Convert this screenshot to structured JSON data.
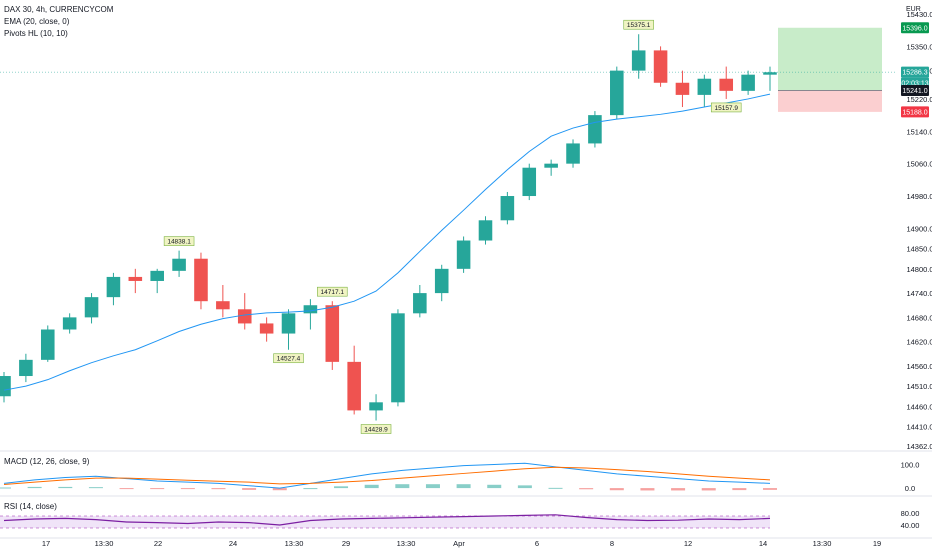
{
  "legend": {
    "symbol": "DAX 30, 4h, CURRENCYCOM",
    "ema": "EMA (20, close, 0)",
    "pivots": "Pivots HL (10, 10)",
    "macd": "MACD (12, 26, close, 9)",
    "rsi": "RSI (14, close)"
  },
  "currency": "EUR",
  "colors": {
    "up": "#26a69a",
    "down": "#ef5350",
    "ema": "#2196f3",
    "macd_line": "#2196f3",
    "signal_line": "#ff6d00",
    "rsi_line": "#7b1fa2",
    "target_zone": "#c8ecc9",
    "stop_zone": "#fbcfd0",
    "target_tag": "#089950",
    "stop_tag": "#f23645",
    "price_tag": "#26a69a",
    "entry_tag": "#131722"
  },
  "chart_data": [
    {
      "type": "candlestick",
      "title": "DAX 30, 4h, CURRENCYCOM",
      "y_axis": {
        "ticks": [
          "15430.0",
          "15350.0",
          "15290.0",
          "15220.0",
          "15140.0",
          "15060.0",
          "14980.0",
          "14900.0",
          "14850.0",
          "14800.0",
          "14740.0",
          "14680.0",
          "14620.0",
          "14560.0",
          "14510.0",
          "14460.0",
          "14410.0",
          "14362.0"
        ],
        "unit": "EUR"
      },
      "x_axis": {
        "ticks": [
          "17",
          "13:30",
          "22",
          "24",
          "13:30",
          "29",
          "13:30",
          "Apr",
          "6",
          "8",
          "12",
          "14",
          "13:30",
          "19"
        ]
      },
      "pivot_labels": [
        "14838.1",
        "14717.1",
        "15375.1",
        "14527.4",
        "14428.9",
        "15157.9"
      ],
      "price_tags": {
        "target": "15396.0",
        "last": "15286.3",
        "countdown": "02:03:13",
        "entry": "15241.0",
        "stop": "15188.0"
      },
      "series": [
        {
          "name": "EMA (20, close, 0)",
          "values": [
            14500,
            14510,
            14526,
            14548,
            14568,
            14585,
            14600,
            14622,
            14645,
            14663,
            14677,
            14686,
            14691,
            14693,
            14696,
            14705,
            14720,
            14745,
            14790,
            14843,
            14895,
            14945,
            14996,
            15045,
            15090,
            15128,
            15148,
            15162,
            15170,
            15176,
            15182,
            15190,
            15200,
            15210,
            15220,
            15232
          ]
        }
      ],
      "candles": [
        [
          14485,
          14545,
          14470,
          14535
        ],
        [
          14535,
          14590,
          14520,
          14575
        ],
        [
          14575,
          14660,
          14570,
          14650
        ],
        [
          14650,
          14690,
          14640,
          14680
        ],
        [
          14680,
          14740,
          14665,
          14730
        ],
        [
          14730,
          14790,
          14710,
          14780
        ],
        [
          14780,
          14800,
          14740,
          14770
        ],
        [
          14770,
          14800,
          14740,
          14795
        ],
        [
          14795,
          14845,
          14780,
          14825
        ],
        [
          14825,
          14840,
          14700,
          14720
        ],
        [
          14720,
          14760,
          14680,
          14700
        ],
        [
          14700,
          14740,
          14650,
          14665
        ],
        [
          14665,
          14680,
          14620,
          14640
        ],
        [
          14640,
          14700,
          14600,
          14690
        ],
        [
          14690,
          14725,
          14650,
          14710
        ],
        [
          14710,
          14720,
          14550,
          14570
        ],
        [
          14570,
          14610,
          14440,
          14450
        ],
        [
          14450,
          14490,
          14425,
          14470
        ],
        [
          14470,
          14700,
          14460,
          14690
        ],
        [
          14690,
          14760,
          14680,
          14740
        ],
        [
          14740,
          14810,
          14720,
          14800
        ],
        [
          14800,
          14880,
          14790,
          14870
        ],
        [
          14870,
          14930,
          14860,
          14920
        ],
        [
          14920,
          14990,
          14910,
          14980
        ],
        [
          14980,
          15060,
          14970,
          15050
        ],
        [
          15050,
          15070,
          15030,
          15060
        ],
        [
          15060,
          15120,
          15050,
          15110
        ],
        [
          15110,
          15190,
          15100,
          15180
        ],
        [
          15180,
          15300,
          15170,
          15290
        ],
        [
          15290,
          15380,
          15270,
          15340
        ],
        [
          15340,
          15350,
          15250,
          15260
        ],
        [
          15260,
          15290,
          15200,
          15230
        ],
        [
          15230,
          15280,
          15200,
          15270
        ],
        [
          15270,
          15300,
          15220,
          15240
        ],
        [
          15240,
          15290,
          15230,
          15280
        ],
        [
          15280,
          15300,
          15240,
          15286
        ]
      ]
    },
    {
      "type": "line",
      "title": "MACD (12, 26, close, 9)",
      "y_axis": {
        "ticks": [
          "100.0",
          "0.0"
        ]
      },
      "series": [
        {
          "name": "MACD",
          "values": [
            20,
            35,
            45,
            50,
            40,
            30,
            25,
            20,
            10,
            0,
            20,
            40,
            60,
            75,
            85,
            95,
            100,
            105,
            90,
            75,
            60,
            50,
            40,
            30,
            25,
            20
          ]
        },
        {
          "name": "Signal",
          "values": [
            15,
            25,
            35,
            42,
            42,
            38,
            33,
            29,
            25,
            18,
            20,
            25,
            32,
            42,
            52,
            62,
            72,
            82,
            88,
            85,
            78,
            70,
            60,
            50,
            42,
            35
          ]
        }
      ]
    },
    {
      "type": "line",
      "title": "RSI (14, close)",
      "y_axis": {
        "ticks": [
          "80.00",
          "40.00"
        ],
        "range": [
          0,
          100
        ]
      },
      "series": [
        {
          "name": "RSI",
          "values": [
            55,
            60,
            62,
            58,
            50,
            48,
            45,
            50,
            48,
            40,
            55,
            60,
            62,
            64,
            66,
            68,
            70,
            72,
            74,
            65,
            58,
            55,
            56,
            60,
            58,
            62
          ]
        }
      ]
    }
  ]
}
